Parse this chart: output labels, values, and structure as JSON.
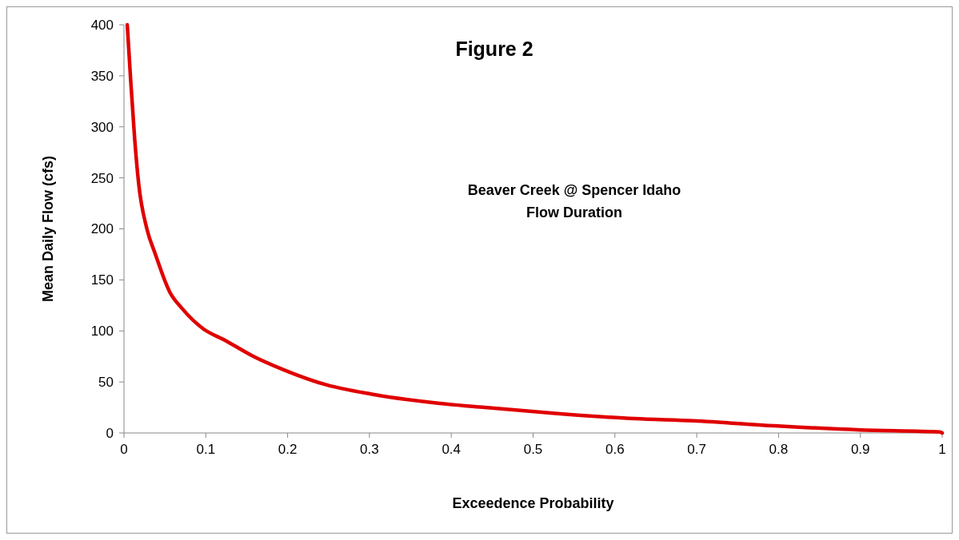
{
  "chart_data": {
    "type": "line",
    "title": "Figure 2",
    "xlabel": "Exceedence Probability",
    "ylabel": "Mean Daily Flow (cfs)",
    "annotations": [
      "Beaver Creek @ Spencer Idaho",
      "Flow Duration"
    ],
    "xlim": [
      0,
      1
    ],
    "xticks": [
      0,
      0.1,
      0.2,
      0.3,
      0.4,
      0.5,
      0.6,
      0.7,
      0.8,
      0.9,
      1
    ],
    "ylim": [
      0,
      400
    ],
    "yticks": [
      0,
      50,
      100,
      150,
      200,
      250,
      300,
      350,
      400
    ],
    "marker": "none",
    "line_style": "solid",
    "series": [
      {
        "color": "#e00000",
        "x": [
          0.004,
          0.008,
          0.013,
          0.018,
          0.028,
          0.038,
          0.056,
          0.071,
          0.097,
          0.123,
          0.156,
          0.195,
          0.248,
          0.303,
          0.386,
          0.441,
          0.53,
          0.624,
          0.696,
          0.795,
          0.9,
          0.997,
          1
        ],
        "values": [
          400,
          348,
          289,
          244,
          200,
          176,
          138,
          122,
          102,
          91,
          76,
          62,
          47,
          38,
          29,
          25,
          19,
          14,
          12,
          7,
          3,
          1,
          0
        ]
      }
    ]
  }
}
